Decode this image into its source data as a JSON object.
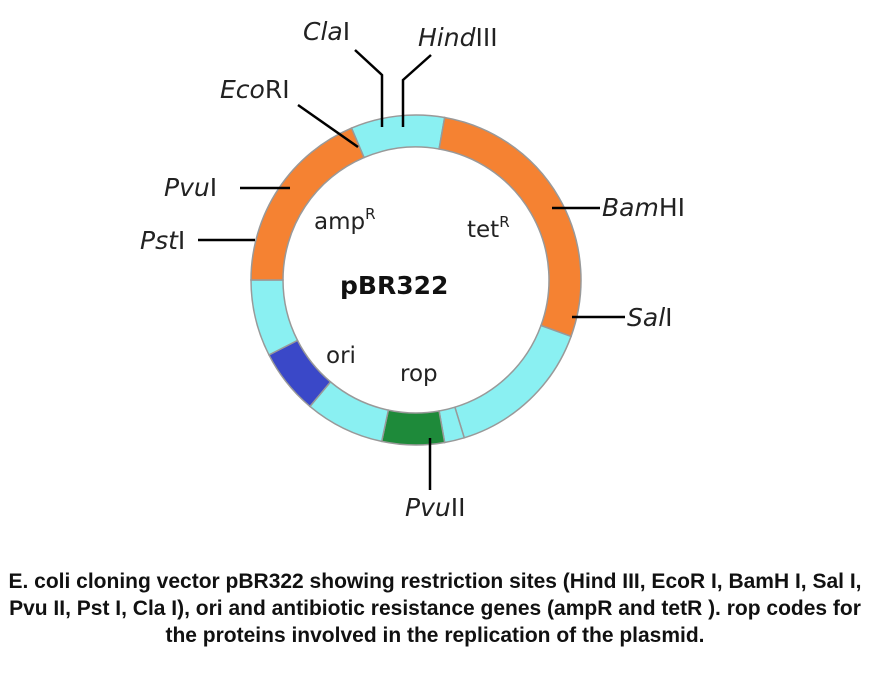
{
  "diagram": {
    "center_label": "pBR322",
    "genes": {
      "amp": {
        "text": "amp",
        "sup": "R"
      },
      "tet": {
        "text": "tet",
        "sup": "R"
      },
      "ori": "ori",
      "rop": "rop"
    },
    "sites": {
      "clai": {
        "italic": "Cla",
        "plain": "I"
      },
      "hindiii": {
        "italic": "Hind",
        "plain": "III"
      },
      "ecori": {
        "italic": "Eco",
        "plain": "RI"
      },
      "bamhi": {
        "italic": "Bam",
        "plain": "HI"
      },
      "pvui": {
        "italic": "Pvu",
        "plain": "I"
      },
      "psti": {
        "italic": "Pst",
        "plain": "I"
      },
      "sali": {
        "italic": "Sal",
        "plain": "I"
      },
      "pvuii": {
        "italic": "Pvu",
        "plain": "II"
      }
    },
    "colors": {
      "amp_tet": "#F58232",
      "spacer": "#8AF0F2",
      "ori": "#3A48C8",
      "rop": "#1E8A3A",
      "border": "#999999"
    }
  },
  "caption": "E. coli cloning vector pBR322 showing restriction sites (Hind III, EcoR I, BamH I, Sal I, Pvu II, Pst I, Cla I), ori and antibiotic resistance genes (ampR and tetR ). rop codes for the proteins involved in the replication of the plasmid."
}
